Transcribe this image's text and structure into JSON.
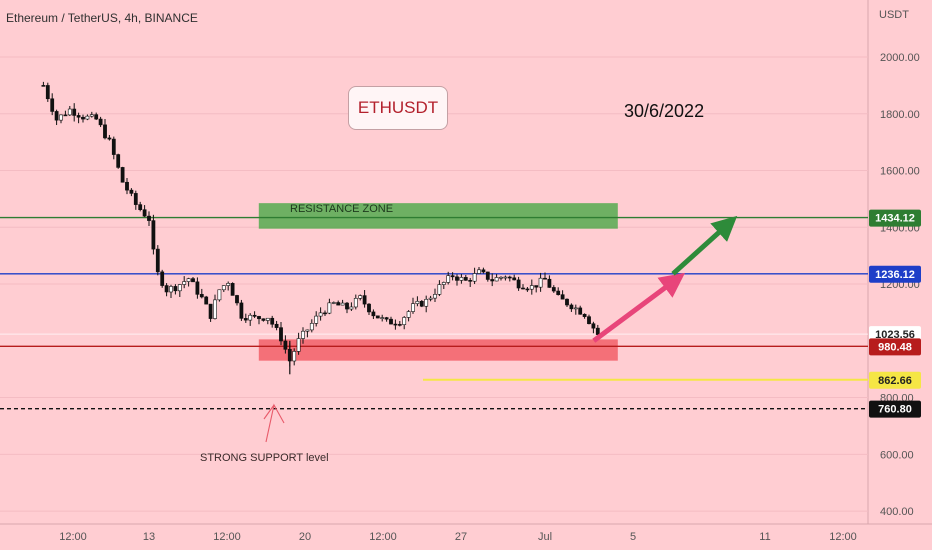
{
  "header": {
    "title": "Ethereum / TetherUS, 4h, BINANCE"
  },
  "ticker_badge": "ETHUSDT",
  "date_label": "30/6/2022",
  "annotations": {
    "resistance_zone": "RESISTANCE ZONE",
    "support_label": "STRONG SUPPORT level"
  },
  "colors": {
    "background": "#ffcdd2",
    "resistance_line": "#2e7d32",
    "blue_line": "#1e3ec8",
    "support_line": "#b71c1c",
    "yellow_line": "#f5e645",
    "arrow_pink": "#e8457a",
    "arrow_green": "#2e8b3a"
  },
  "chart_data": {
    "type": "candlestick",
    "title": "Ethereum / TetherUS, 4h, BINANCE",
    "y_axis": {
      "unit": "USDT",
      "ticks": [
        2000,
        1800,
        1600,
        1400,
        1200,
        800,
        600,
        400
      ],
      "tick_labels": [
        "2000.00",
        "1800.00",
        "1600.00",
        "1400.00",
        "1200.00",
        "800.00",
        "600.00",
        "400.00"
      ],
      "range": [
        380,
        2160
      ]
    },
    "x_axis": {
      "tick_labels": [
        "12:00",
        "13",
        "12:00",
        "20",
        "12:00",
        "27",
        "Jul",
        "5",
        "11",
        "12:00"
      ]
    },
    "close_path": [
      [
        "Jun 9 00:00",
        1900
      ],
      [
        "Jun 9 12:00",
        1780
      ],
      [
        "Jun 10 00:00",
        1815
      ],
      [
        "Jun 10 12:00",
        1790
      ],
      [
        "Jun 11 00:00",
        1780
      ],
      [
        "Jun 11 12:00",
        1700
      ],
      [
        "Jun 12 00:00",
        1560
      ],
      [
        "Jun 12 12:00",
        1480
      ],
      [
        "Jun 13 00:00",
        1430
      ],
      [
        "Jun 13 06:00",
        1250
      ],
      [
        "Jun 13 16:00",
        1180
      ],
      [
        "Jun 14 00:00",
        1190
      ],
      [
        "Jun 14 12:00",
        1220
      ],
      [
        "Jun 15 00:00",
        1150
      ],
      [
        "Jun 15 08:00",
        1090
      ],
      [
        "Jun 15 16:00",
        1180
      ],
      [
        "Jun 16 00:00",
        1210
      ],
      [
        "Jun 16 12:00",
        1090
      ],
      [
        "Jun 17 00:00",
        1080
      ],
      [
        "Jun 17 12:00",
        1085
      ],
      [
        "Jun 18 00:00",
        1010
      ],
      [
        "Jun 18 08:00",
        930
      ],
      [
        "Jun 18 16:00",
        1000
      ],
      [
        "Jun 19 00:00",
        1040
      ],
      [
        "Jun 19 12:00",
        1100
      ],
      [
        "Jun 20 00:00",
        1130
      ],
      [
        "Jun 20 12:00",
        1115
      ],
      [
        "Jun 21 00:00",
        1150
      ],
      [
        "Jun 21 12:00",
        1095
      ],
      [
        "Jun 22 00:00",
        1065
      ],
      [
        "Jun 22 12:00",
        1070
      ],
      [
        "Jun 23 00:00",
        1120
      ],
      [
        "Jun 23 12:00",
        1140
      ],
      [
        "Jun 24 00:00",
        1190
      ],
      [
        "Jun 24 12:00",
        1230
      ],
      [
        "Jun 25 00:00",
        1210
      ],
      [
        "Jun 25 12:00",
        1240
      ],
      [
        "Jun 26 00:00",
        1215
      ],
      [
        "Jun 26 12:00",
        1230
      ],
      [
        "Jun 27 00:00",
        1200
      ],
      [
        "Jun 27 12:00",
        1190
      ],
      [
        "Jun 28 00:00",
        1215
      ],
      [
        "Jun 28 12:00",
        1150
      ],
      [
        "Jun 29 00:00",
        1125
      ],
      [
        "Jun 29 12:00",
        1095
      ],
      [
        "Jun 30 00:00",
        1023
      ]
    ],
    "horizontal_levels": [
      {
        "price": 1434.12,
        "label": "1434.12",
        "color": "#2e7d32",
        "style": "solid"
      },
      {
        "price": 1236.12,
        "label": "1236.12",
        "color": "#1e3ec8",
        "style": "solid"
      },
      {
        "price": 1023.56,
        "label": "1023.56",
        "color": "#ffffff",
        "style": "solid"
      },
      {
        "price": 980.48,
        "label": "980.48",
        "color": "#b71c1c",
        "style": "solid"
      },
      {
        "price": 862.66,
        "label": "862.66",
        "color": "#f5e645",
        "style": "solid"
      },
      {
        "price": 760.8,
        "label": "760.80",
        "color": "#111111",
        "style": "dashed"
      }
    ],
    "zones": [
      {
        "label": "RESISTANCE ZONE",
        "from": 1395,
        "to": 1485,
        "color": "#3da63d"
      },
      {
        "label": "",
        "from": 930,
        "to": 1005,
        "color": "#f0505a"
      }
    ],
    "projection_arrows": [
      {
        "from": [
          "Jun 30 00:00",
          1000
        ],
        "to": [
          "Jul 3 00:00",
          1236
        ],
        "color": "#e8457a"
      },
      {
        "from": [
          "Jul 3 00:00",
          1236
        ],
        "to": [
          "Jul 5 00:00",
          1434
        ],
        "color": "#2e8b3a"
      }
    ],
    "grid": true,
    "legend": "none"
  }
}
